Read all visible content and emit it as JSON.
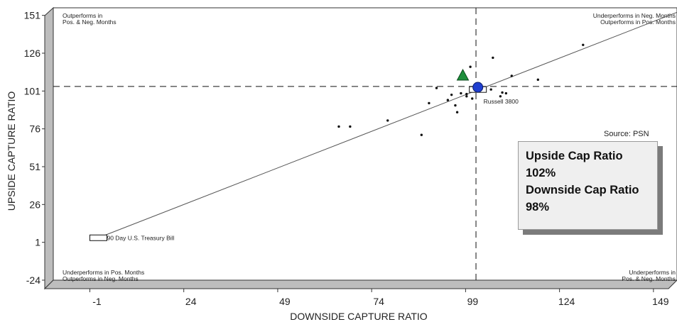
{
  "chart_data": {
    "type": "scatter",
    "xlabel": "DOWNSIDE CAPTURE RATIO",
    "ylabel": "UPSIDE CAPTURE RATIO",
    "xlim": [
      -13,
      153
    ],
    "ylim": [
      -24,
      156
    ],
    "x_ticks": [
      -1,
      24,
      49,
      74,
      99,
      124,
      149
    ],
    "y_ticks": [
      -24,
      1,
      26,
      51,
      76,
      101,
      126,
      151
    ],
    "reference_lines": {
      "vertical_x": 99.5,
      "horizontal_y": 104
    },
    "regression_line": {
      "from": [
        -1,
        4
      ],
      "to": [
        153,
        153
      ]
    },
    "points": [
      {
        "x": 63,
        "y": 77.5
      },
      {
        "x": 66,
        "y": 77.5
      },
      {
        "x": 76,
        "y": 81.5
      },
      {
        "x": 85,
        "y": 72
      },
      {
        "x": 87,
        "y": 93
      },
      {
        "x": 89,
        "y": 103
      },
      {
        "x": 92,
        "y": 95
      },
      {
        "x": 93,
        "y": 98.5
      },
      {
        "x": 94,
        "y": 91.5
      },
      {
        "x": 94.5,
        "y": 87
      },
      {
        "x": 95.5,
        "y": 99.5
      },
      {
        "x": 97,
        "y": 99
      },
      {
        "x": 97,
        "y": 97.5
      },
      {
        "x": 98,
        "y": 117
      },
      {
        "x": 98.5,
        "y": 96
      },
      {
        "x": 103.5,
        "y": 102
      },
      {
        "x": 104,
        "y": 123
      },
      {
        "x": 106,
        "y": 97.5
      },
      {
        "x": 106.5,
        "y": 100
      },
      {
        "x": 107.5,
        "y": 99.5
      },
      {
        "x": 109,
        "y": 111
      },
      {
        "x": 116,
        "y": 108.5
      },
      {
        "x": 128,
        "y": 131.5
      }
    ],
    "benchmarks": [
      {
        "name": "Russell 3800",
        "x": 100,
        "y": 102
      },
      {
        "name": "90 Day U.S. Treasury Bill",
        "x": -1,
        "y": 4
      }
    ],
    "highlighted": [
      {
        "shape": "circle",
        "color": "#1f3fd0",
        "x": 100,
        "y": 103.5
      },
      {
        "shape": "triangle",
        "color": "#1e8f3c",
        "x": 96,
        "y": 111
      }
    ],
    "quadrant_labels": {
      "top_left": [
        "Outperforms in",
        "Pos. & Neg. Months"
      ],
      "top_right": [
        "Underperforms in Neg. Months",
        "Outperforms in Pos. Months"
      ],
      "bottom_left": [
        "Underperforms in Pos. Months",
        "Outperforms in Neg. Months"
      ],
      "bottom_right": [
        "Underperforms in",
        "Pos. & Neg. Months"
      ]
    },
    "source": "Source:  PSN",
    "grid": false
  },
  "stat_box": {
    "line1": "Upside Cap Ratio",
    "line2": "102%",
    "line3": "Downside Cap Ratio",
    "line4": "98%"
  }
}
